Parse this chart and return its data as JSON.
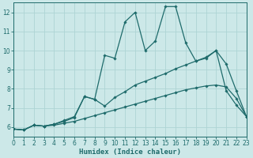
{
  "xlabel": "Humidex (Indice chaleur)",
  "xlim": [
    0,
    23
  ],
  "ylim": [
    5.5,
    12.5
  ],
  "yticks": [
    6,
    7,
    8,
    9,
    10,
    11,
    12
  ],
  "xticks": [
    0,
    1,
    2,
    3,
    4,
    5,
    6,
    7,
    8,
    9,
    10,
    11,
    12,
    13,
    14,
    15,
    16,
    17,
    18,
    19,
    20,
    21,
    22,
    23
  ],
  "bg_color": "#cce8e8",
  "grid_color": "#aed4d4",
  "line_color": "#1e6b6b",
  "lines": [
    {
      "x": [
        0,
        1,
        2,
        3,
        4,
        5,
        6,
        7,
        8,
        9,
        10,
        11,
        12,
        13,
        14,
        15,
        16,
        17,
        18,
        19,
        20,
        21,
        22,
        23
      ],
      "y": [
        5.9,
        5.85,
        6.1,
        6.05,
        6.1,
        6.2,
        6.3,
        6.45,
        6.6,
        6.75,
        6.9,
        7.05,
        7.2,
        7.35,
        7.5,
        7.65,
        7.8,
        7.95,
        8.05,
        8.15,
        8.2,
        8.1,
        7.5,
        6.55
      ]
    },
    {
      "x": [
        0,
        1,
        2,
        3,
        4,
        5,
        6,
        7,
        8,
        9,
        10,
        11,
        12,
        13,
        14,
        15,
        16,
        17,
        18,
        19,
        20,
        21,
        22,
        23
      ],
      "y": [
        5.9,
        5.85,
        6.1,
        6.05,
        6.15,
        6.3,
        6.5,
        7.6,
        7.45,
        7.1,
        7.55,
        7.85,
        8.2,
        8.4,
        8.6,
        8.8,
        9.05,
        9.25,
        9.45,
        9.6,
        10.0,
        9.3,
        7.9,
        6.55
      ]
    },
    {
      "x": [
        0,
        1,
        2,
        3,
        4,
        5,
        6,
        7,
        8,
        9,
        10,
        11,
        12,
        13,
        14,
        15,
        16,
        17,
        18,
        19,
        20,
        21,
        22,
        23
      ],
      "y": [
        5.9,
        5.85,
        6.1,
        6.05,
        6.15,
        6.35,
        6.55,
        7.6,
        7.45,
        9.75,
        9.6,
        11.5,
        12.0,
        10.0,
        10.5,
        12.3,
        12.3,
        10.4,
        9.45,
        9.65,
        10.0,
        7.9,
        7.15,
        6.55
      ]
    }
  ]
}
